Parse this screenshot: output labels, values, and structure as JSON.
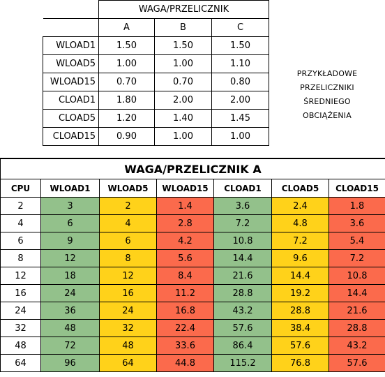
{
  "weights_table": {
    "title": "WAGA/PRZELICZNIK",
    "columns": [
      "A",
      "B",
      "C"
    ],
    "rows": [
      {
        "label": "WLOAD1",
        "values": [
          "1.50",
          "1.50",
          "1.50"
        ]
      },
      {
        "label": "WLOAD5",
        "values": [
          "1.00",
          "1.00",
          "1.10"
        ]
      },
      {
        "label": "WLOAD15",
        "values": [
          "0.70",
          "0.70",
          "0.80"
        ]
      },
      {
        "label": "CLOAD1",
        "values": [
          "1.80",
          "2.00",
          "2.00"
        ]
      },
      {
        "label": "CLOAD5",
        "values": [
          "1.20",
          "1.40",
          "1.45"
        ]
      },
      {
        "label": "CLOAD15",
        "values": [
          "0.90",
          "1.00",
          "1.00"
        ]
      }
    ]
  },
  "note": {
    "lines": [
      "PRZYKŁADOWE",
      "PRZELICZNIKI",
      "ŚREDNIEGO",
      "OBCIĄŻENIA"
    ]
  },
  "result_table": {
    "title": "WAGA/PRZELICZNIK A",
    "headers": [
      "CPU",
      "WLOAD1",
      "WLOAD5",
      "WLOAD15",
      "CLOAD1",
      "CLOAD5",
      "CLOAD15"
    ],
    "rows": [
      [
        "2",
        "3",
        "2",
        "1.4",
        "3.6",
        "2.4",
        "1.8"
      ],
      [
        "4",
        "6",
        "4",
        "2.8",
        "7.2",
        "4.8",
        "3.6"
      ],
      [
        "6",
        "9",
        "6",
        "4.2",
        "10.8",
        "7.2",
        "5.4"
      ],
      [
        "8",
        "12",
        "8",
        "5.6",
        "14.4",
        "9.6",
        "7.2"
      ],
      [
        "12",
        "18",
        "12",
        "8.4",
        "21.6",
        "14.4",
        "10.8"
      ],
      [
        "16",
        "24",
        "16",
        "11.2",
        "28.8",
        "19.2",
        "14.4"
      ],
      [
        "24",
        "36",
        "24",
        "16.8",
        "43.2",
        "28.8",
        "21.6"
      ],
      [
        "32",
        "48",
        "32",
        "22.4",
        "57.6",
        "38.4",
        "28.8"
      ],
      [
        "48",
        "72",
        "48",
        "33.6",
        "86.4",
        "57.6",
        "43.2"
      ],
      [
        "64",
        "96",
        "64",
        "44.8",
        "115.2",
        "76.8",
        "57.6"
      ]
    ]
  },
  "colors": {
    "green": "#93c18b",
    "yellow": "#ffd21a",
    "red": "#fb6a4c"
  }
}
